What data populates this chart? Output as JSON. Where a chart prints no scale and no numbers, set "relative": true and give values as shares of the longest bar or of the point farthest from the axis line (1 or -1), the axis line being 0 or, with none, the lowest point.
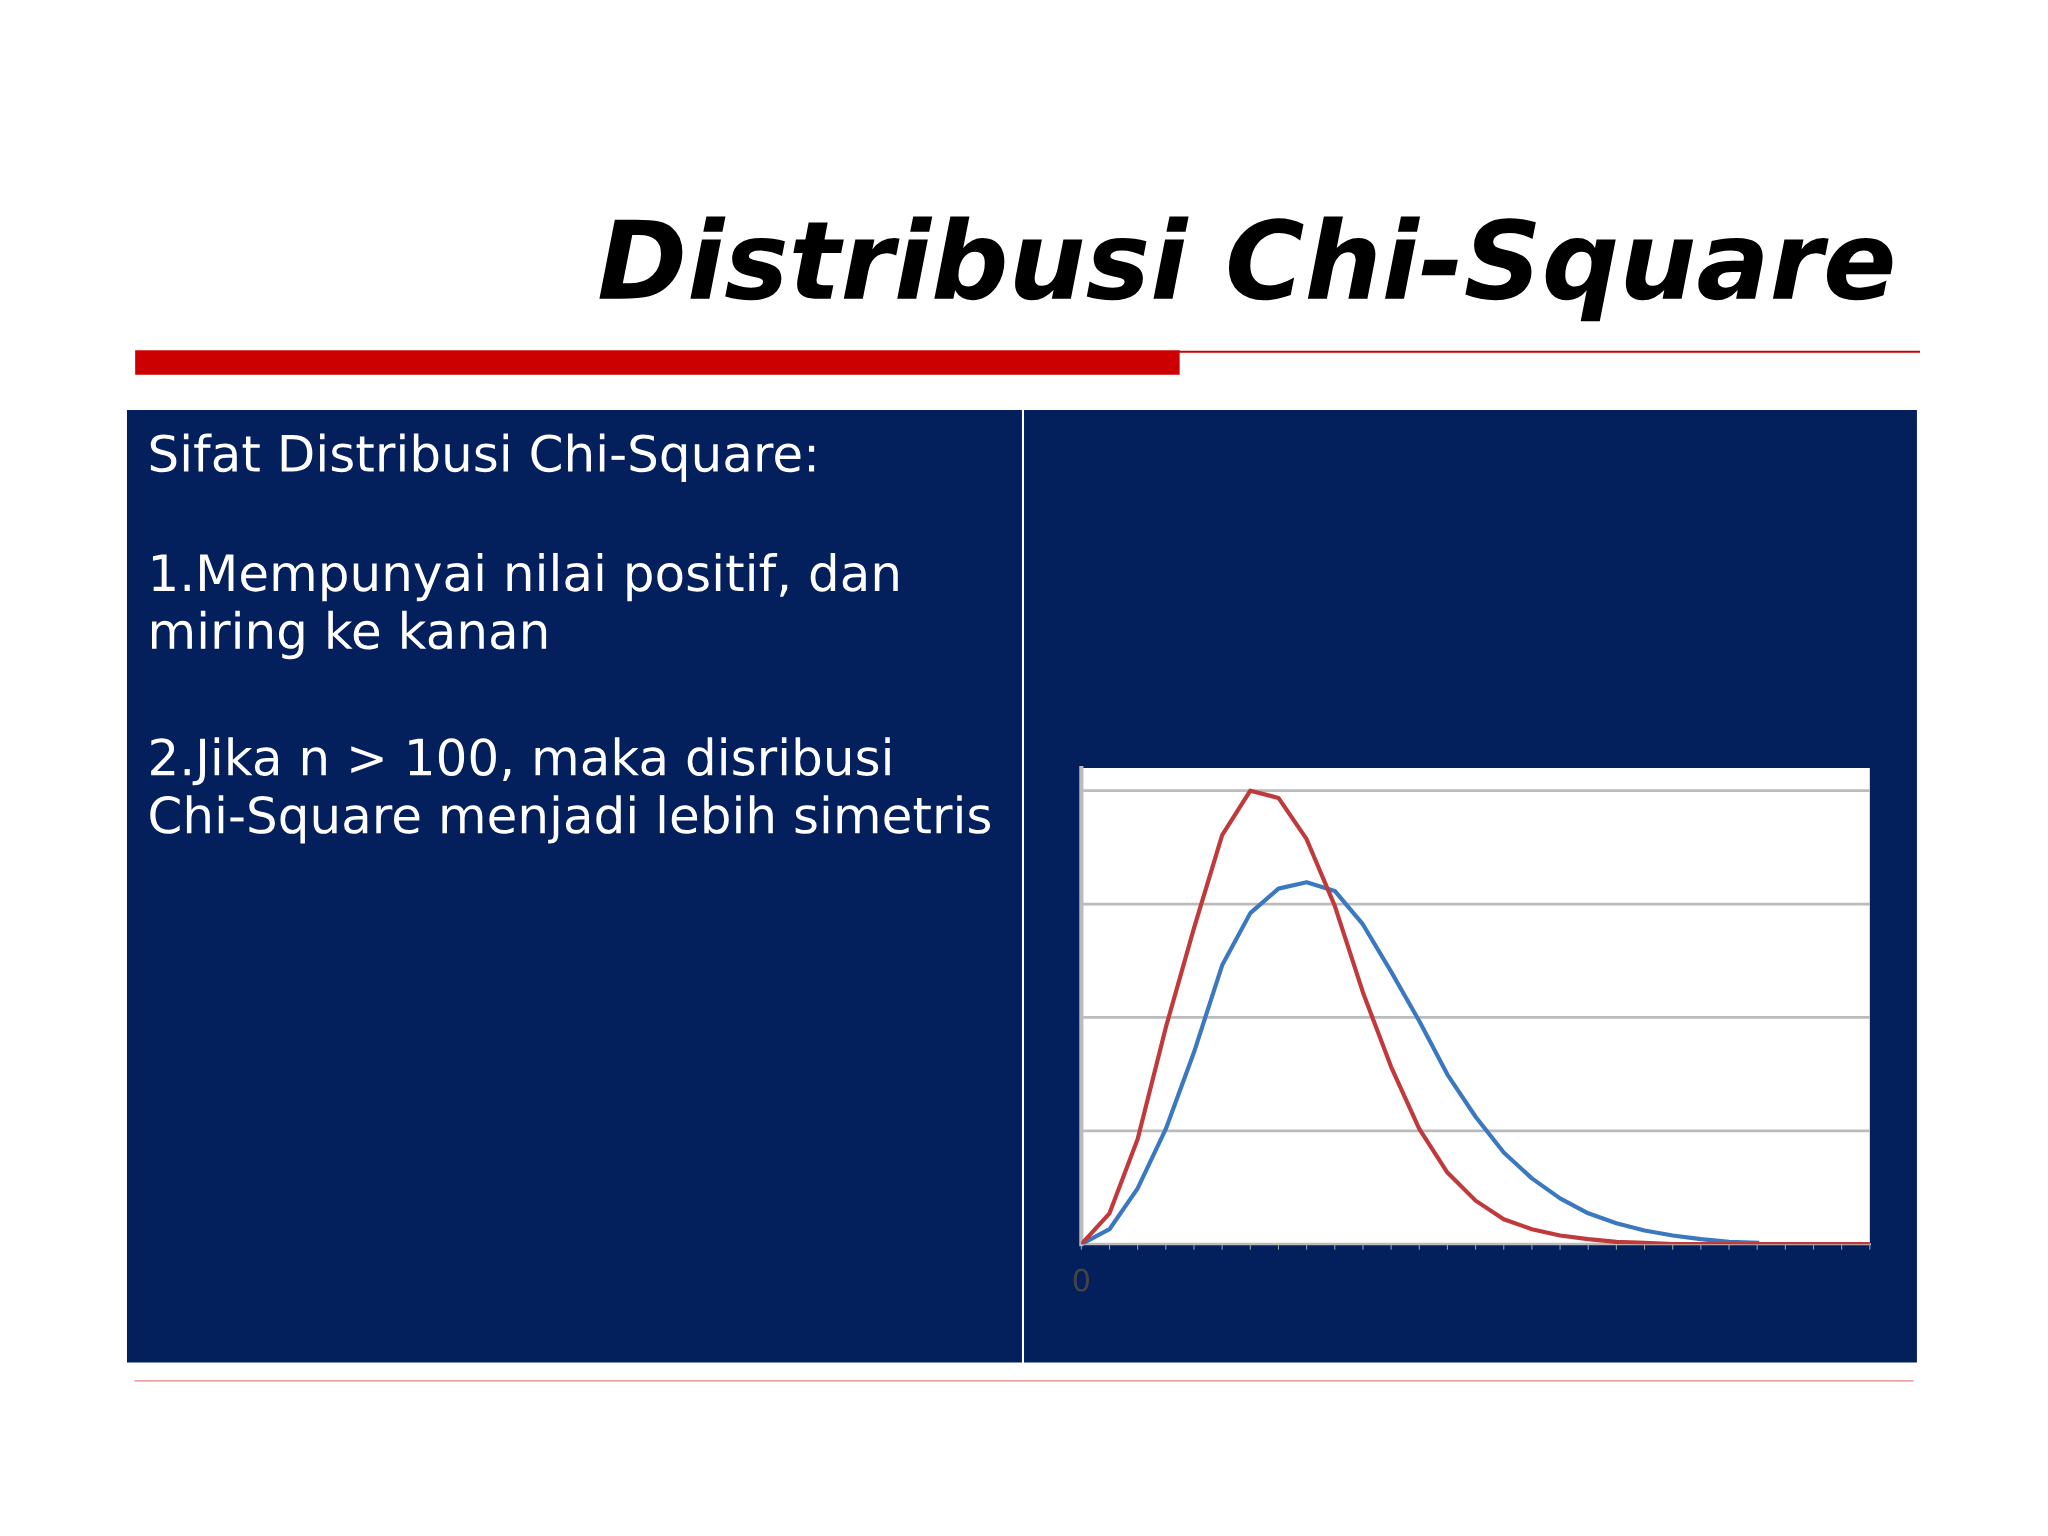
{
  "chart_data": {
    "type": "line",
    "title": "Distribusi Chi-Square",
    "subtitle": "Sifat Distribusi Chi-Square:",
    "annotations": [
      "1.Mempunyai nilai positif, dan miring ke kanan",
      "2.Jika n > 100, maka disribusi Chi-Square menjadi lebih simetris",
      "0"
    ],
    "categories": [
      null,
      null,
      null,
      null,
      null,
      null,
      null,
      null,
      null,
      null,
      null,
      null,
      null,
      null,
      null,
      null,
      null,
      null,
      null,
      null,
      null,
      null,
      null,
      null,
      null,
      null,
      null,
      null,
      null
    ],
    "relative": true,
    "grid": "y",
    "marker": "none",
    "line_style": "solid",
    "series": [
      {
        "color": "#c0393b",
        "values": [
          0,
          0.068,
          0.232,
          0.478,
          0.697,
          0.902,
          1,
          0.984,
          0.893,
          0.746,
          0.555,
          0.391,
          0.254,
          0.158,
          0.096,
          0.055,
          0.033,
          0.019,
          0.011,
          0.005,
          0.003,
          0,
          0,
          0,
          0,
          0,
          0,
          0,
          0
        ]
      },
      {
        "color": "#3a78c0",
        "values": [
          0,
          0.033,
          0.123,
          0.254,
          0.423,
          0.615,
          0.73,
          0.784,
          0.798,
          0.779,
          0.705,
          0.601,
          0.492,
          0.374,
          0.281,
          0.202,
          0.145,
          0.101,
          0.068,
          0.046,
          0.03,
          0.019,
          0.011,
          0.005,
          0.003,
          null,
          null,
          null,
          null
        ]
      }
    ]
  }
}
